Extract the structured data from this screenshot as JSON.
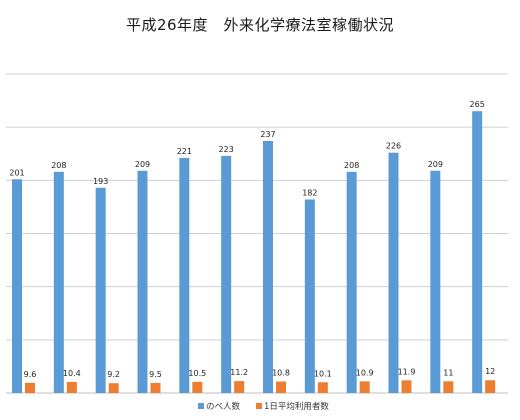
{
  "chart_data": {
    "type": "bar",
    "title": "平成26年度　外来化学療法室稼働状況",
    "xlabel": "",
    "ylabel": "",
    "ylim": [
      0,
      300
    ],
    "grid": true,
    "legend_position": "bottom",
    "categories": [
      "",
      "",
      "",
      "",
      "",
      "",
      "",
      "",
      "",
      "",
      "",
      ""
    ],
    "series": [
      {
        "name": "のべ人数",
        "color": "#5b9bd5",
        "values": [
          201,
          208,
          193,
          209,
          221,
          223,
          237,
          182,
          208,
          226,
          209,
          265
        ],
        "labels": [
          "201",
          "208",
          "193",
          "209",
          "221",
          "223",
          "237",
          "182",
          "208",
          "226",
          "209",
          "265"
        ]
      },
      {
        "name": "1日平均利用者数",
        "color": "#ed7d31",
        "values": [
          9.6,
          10.4,
          9.2,
          9.5,
          10.5,
          11.2,
          10.8,
          10.1,
          10.9,
          11.9,
          11,
          12
        ],
        "labels": [
          "9.6",
          "10.4",
          "9.2",
          "9.5",
          "10.5",
          "11.2",
          "10.8",
          "10.1",
          "10.9",
          "11.9",
          "11",
          "12"
        ]
      }
    ]
  }
}
